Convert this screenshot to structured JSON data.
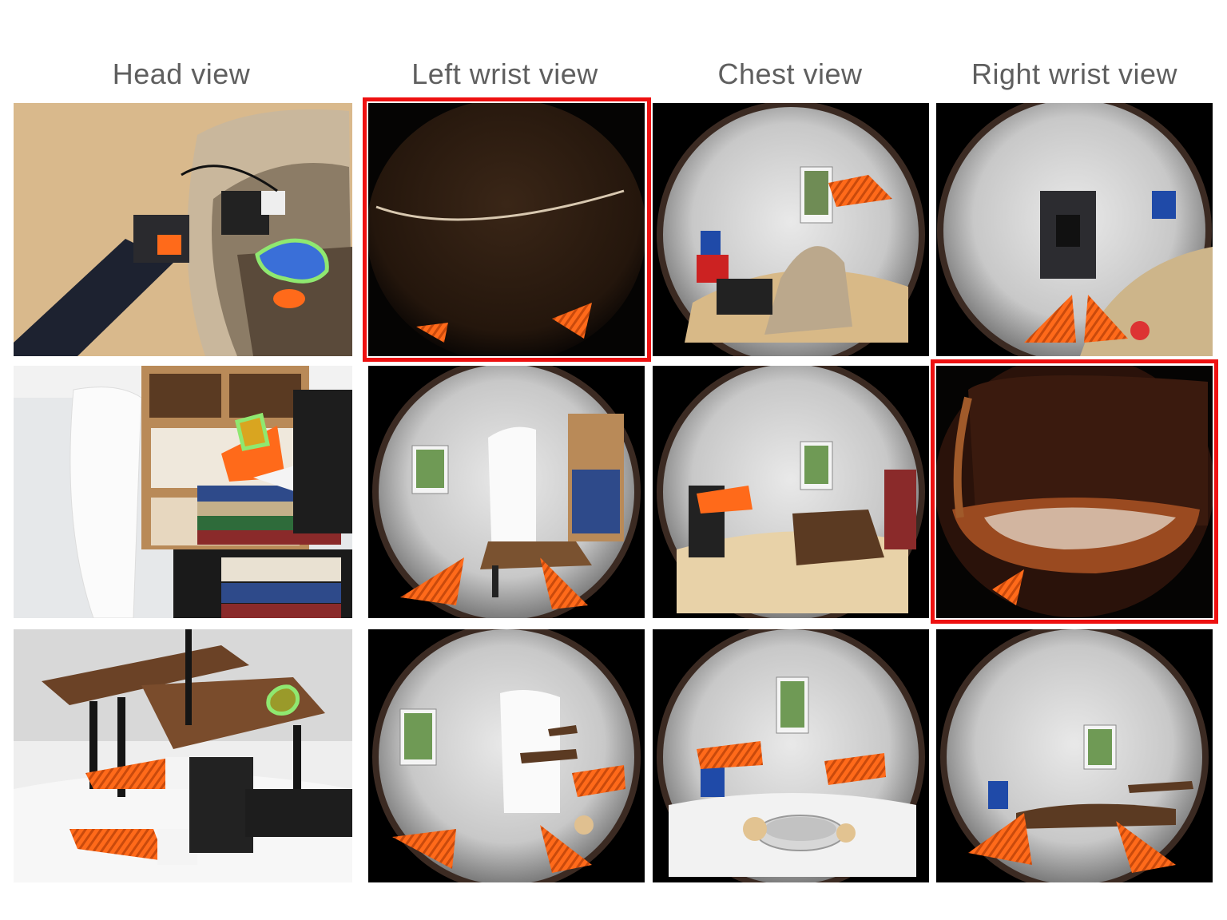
{
  "columns": {
    "head": "Head view",
    "left_wrist": "Left wrist view",
    "chest": "Chest view",
    "right_wrist": "Right wrist view"
  },
  "highlight_color": "#ee1111",
  "target_outline_color": "#8fe870",
  "gripper_color": "#ff6a1a"
}
